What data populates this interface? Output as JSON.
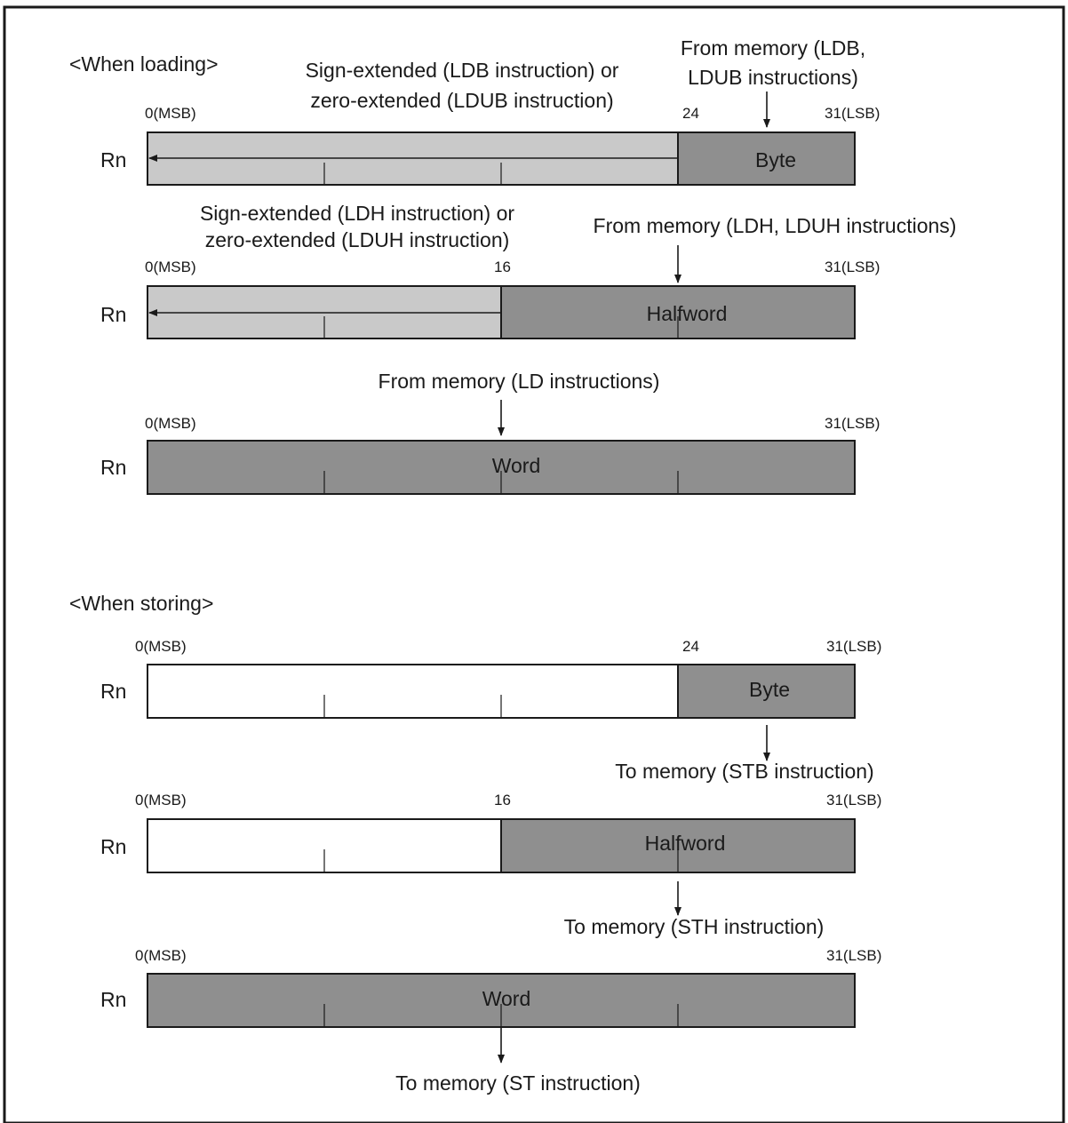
{
  "colors": {
    "frame": "#1a1a1a",
    "light_fill": "#c9c9c9",
    "dark_fill": "#8f8f8f",
    "empty_fill": "#ffffff",
    "line": "#1a1a1a"
  },
  "icons": [
    "arrow-down-icon",
    "arrow-left-icon"
  ],
  "loading": {
    "heading": "<When loading>",
    "byte": {
      "ext_line1": "Sign-extended (LDB instruction) or",
      "ext_line2": "zero-extended (LDUB instruction)",
      "src_line1": "From memory (LDB,",
      "src_line2": "LDUB instructions)",
      "bit_msb": "0(MSB)",
      "bit_mid": "24",
      "bit_lsb": "31(LSB)",
      "reg": "Rn",
      "segment": "Byte"
    },
    "halfword": {
      "ext_line1": "Sign-extended (LDH instruction) or",
      "ext_line2": "zero-extended (LDUH instruction)",
      "src": "From memory (LDH, LDUH instructions)",
      "bit_msb": "0(MSB)",
      "bit_mid": "16",
      "bit_lsb": "31(LSB)",
      "reg": "Rn",
      "segment": "Halfword"
    },
    "word": {
      "src": "From memory (LD instructions)",
      "bit_msb": "0(MSB)",
      "bit_lsb": "31(LSB)",
      "reg": "Rn",
      "segment": "Word"
    }
  },
  "storing": {
    "heading": "<When storing>",
    "byte": {
      "bit_msb": "0(MSB)",
      "bit_mid": "24",
      "bit_lsb": "31(LSB)",
      "reg": "Rn",
      "segment": "Byte",
      "dest": "To memory (STB instruction)"
    },
    "halfword": {
      "bit_msb": "0(MSB)",
      "bit_mid": "16",
      "bit_lsb": "31(LSB)",
      "reg": "Rn",
      "segment": "Halfword",
      "dest": "To memory (STH instruction)"
    },
    "word": {
      "bit_msb": "0(MSB)",
      "bit_lsb": "31(LSB)",
      "reg": "Rn",
      "segment": "Word",
      "dest": "To memory (ST instruction)"
    }
  }
}
